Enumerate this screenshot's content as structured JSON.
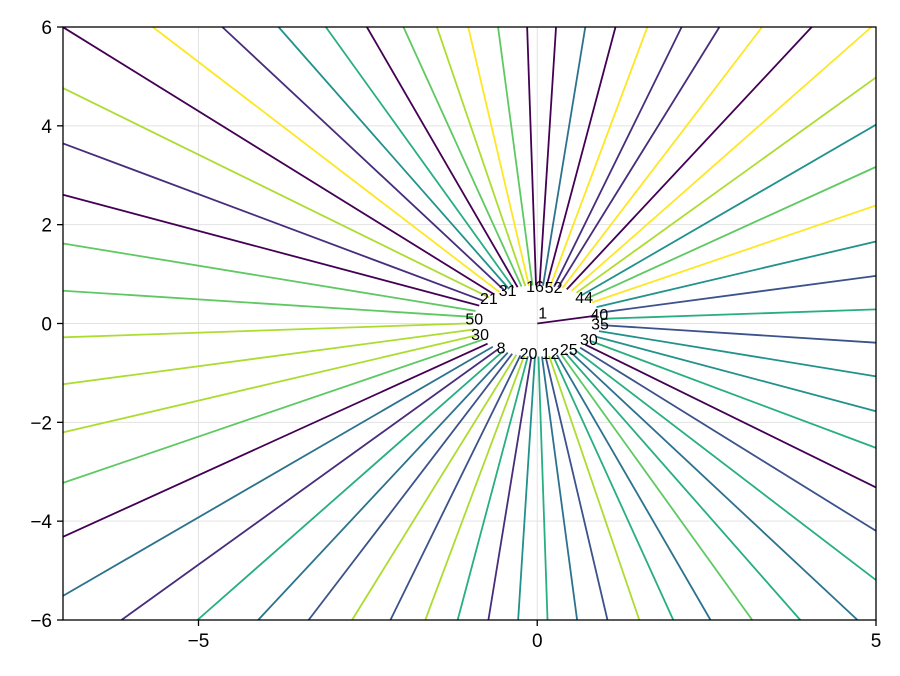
{
  "chart_data": {
    "type": "contour",
    "title": "",
    "xlabel": "",
    "ylabel": "",
    "xlim": [
      -7,
      5
    ],
    "ylim": [
      -6,
      6
    ],
    "grid": true,
    "colormap": "viridis",
    "x_ticks": [
      {
        "value": -5,
        "label": "−5"
      },
      {
        "value": 0,
        "label": "0"
      },
      {
        "value": 5,
        "label": "5"
      }
    ],
    "y_ticks": [
      {
        "value": -6,
        "label": "−6"
      },
      {
        "value": -4,
        "label": "−4"
      },
      {
        "value": -2,
        "label": "−2"
      },
      {
        "value": 0,
        "label": "0"
      },
      {
        "value": 2,
        "label": "2"
      },
      {
        "value": 4,
        "label": "4"
      },
      {
        "value": 6,
        "label": "6"
      }
    ],
    "center": [
      0,
      0
    ],
    "label_ring": {
      "rx": 0.95,
      "ry": 0.72,
      "cy": 0.2
    },
    "n_levels": 64,
    "center_label": "1",
    "visible_labels": [
      {
        "text": "40",
        "angle_deg": 10
      },
      {
        "text": "35",
        "angle_deg": -6
      },
      {
        "text": "30",
        "angle_deg": -35
      },
      {
        "text": "25",
        "angle_deg": -60
      },
      {
        "text": "44",
        "angle_deg": 42
      },
      {
        "text": "52",
        "angle_deg": 75
      },
      {
        "text": "16",
        "angle_deg": 92
      },
      {
        "text": "31",
        "angle_deg": 118
      },
      {
        "text": "21",
        "angle_deg": 140
      },
      {
        "text": "50",
        "angle_deg": 178
      },
      {
        "text": "30",
        "angle_deg": 205
      },
      {
        "text": "8",
        "angle_deg": 235
      },
      {
        "text": "20",
        "angle_deg": 262
      },
      {
        "text": "12",
        "angle_deg": 282
      }
    ]
  }
}
